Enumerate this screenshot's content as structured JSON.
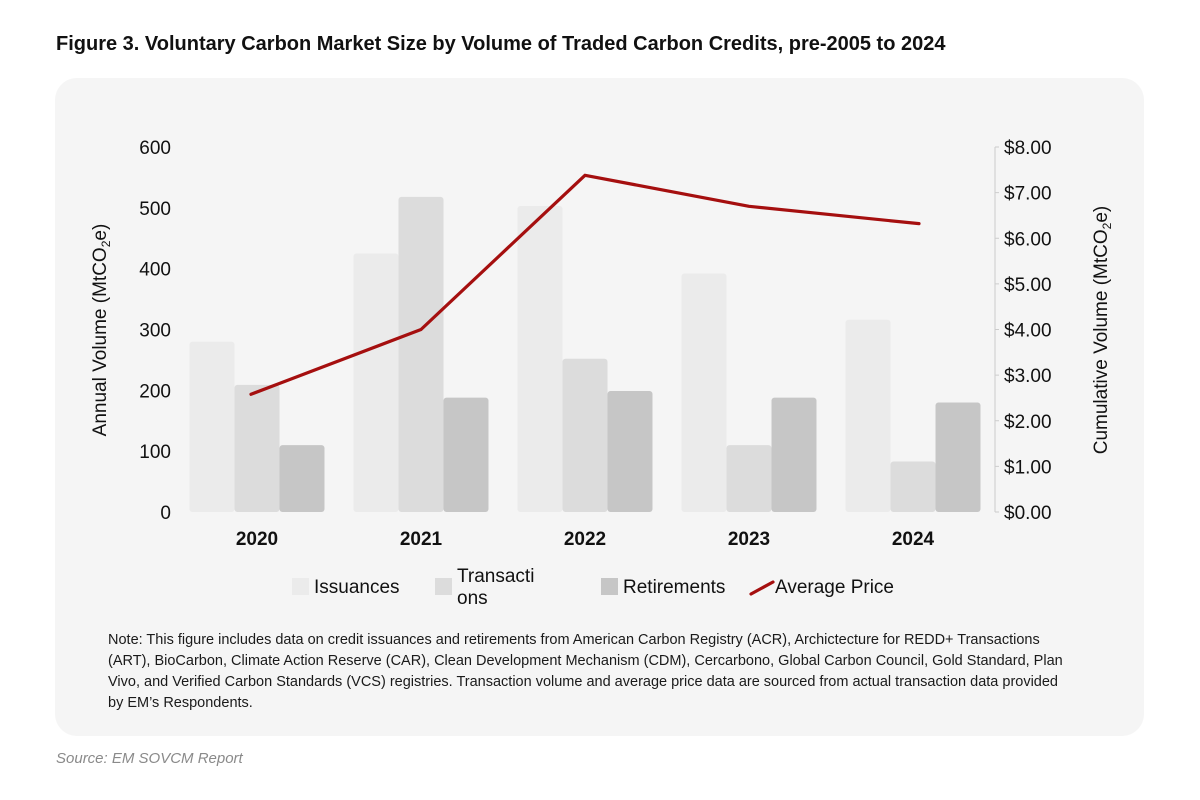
{
  "figure_title": "Figure 3. Voluntary Carbon Market Size by Volume of Traded Carbon Credits, pre-2005 to 2024",
  "note": "Note: This figure includes data on credit issuances and retirements from American Carbon Registry (ACR), Archictecture for REDD+ Transactions (ART), BioCarbon, Climate Action Reserve (CAR), Clean Development Mechanism (CDM), Cercarbono, Global Carbon Council, Gold Standard, Plan Vivo, and Verified Carbon Standards (VCS) registries. Transaction volume and average price data are sourced from actual transaction data provided by EM’s Respondents.",
  "source": "Source: EM SOVCM Report",
  "colors": {
    "issuances": "#ebebeb",
    "transactions": "#dcdcdc",
    "retirements": "#c6c6c6",
    "price": "#a50f0f",
    "axis": "#cccccc"
  },
  "chart_data": {
    "type": "bar",
    "title": "Figure 3. Voluntary Carbon Market Size by Volume of Traded Carbon Credits, pre-2005 to 2024",
    "categories": [
      "2020",
      "2021",
      "2022",
      "2023",
      "2024"
    ],
    "series": [
      {
        "name": "Issuances",
        "type": "bar",
        "axis": "left",
        "values": [
          280,
          425,
          503,
          392,
          316
        ]
      },
      {
        "name": "Transactions",
        "legend_lines": [
          "Transacti",
          "ons"
        ],
        "type": "bar",
        "axis": "left",
        "values": [
          209,
          518,
          252,
          110,
          83
        ]
      },
      {
        "name": "Retirements",
        "type": "bar",
        "axis": "left",
        "values": [
          110,
          188,
          199,
          188,
          180
        ]
      },
      {
        "name": "Average Price",
        "type": "line",
        "axis": "right",
        "values": [
          2.58,
          4.0,
          7.38,
          6.7,
          6.32
        ]
      }
    ],
    "ylabel": "Annual Volume (MtCO2e)",
    "ylabel_parts": [
      "Annual Volume (MtCO",
      "2",
      "e)"
    ],
    "ylim": [
      0,
      600
    ],
    "yticks": [
      0,
      100,
      200,
      300,
      400,
      500,
      600
    ],
    "y2label": "Cumulative Volume (MtCO2e)",
    "y2label_parts": [
      "Cumulative Volume (MtCO",
      "2",
      "e)"
    ],
    "y2lim": [
      0,
      8
    ],
    "y2ticks": [
      "$0.00",
      "$1.00",
      "$2.00",
      "$3.00",
      "$4.00",
      "$5.00",
      "$6.00",
      "$7.00",
      "$8.00"
    ],
    "legend_position": "bottom",
    "grid": false
  }
}
